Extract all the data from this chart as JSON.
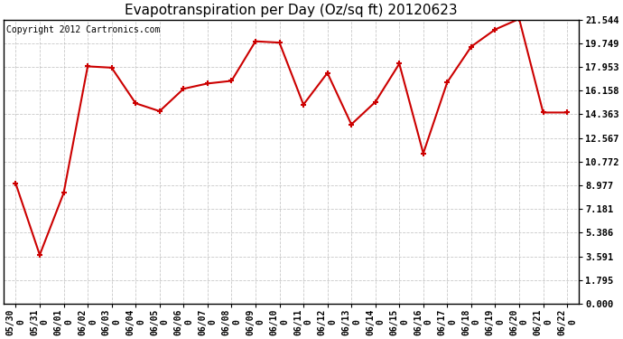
{
  "title": "Evapotranspiration per Day (Oz/sq ft) 20120623",
  "copyright": "Copyright 2012 Cartronics.com",
  "dates": [
    "05/30",
    "05/31",
    "06/01",
    "06/02",
    "06/03",
    "06/04",
    "06/05",
    "06/06",
    "06/07",
    "06/08",
    "06/09",
    "06/10",
    "06/11",
    "06/12",
    "06/13",
    "06/14",
    "06/15",
    "06/16",
    "06/17",
    "06/18",
    "06/19",
    "06/20",
    "06/21",
    "06/22"
  ],
  "values": [
    9.1,
    3.7,
    8.4,
    18.0,
    17.9,
    15.2,
    14.6,
    16.3,
    16.7,
    16.9,
    19.9,
    19.8,
    15.1,
    17.5,
    13.6,
    15.3,
    18.2,
    11.4,
    16.8,
    19.5,
    20.8,
    21.6,
    14.5,
    14.5
  ],
  "line_color": "#cc0000",
  "marker_color": "#cc0000",
  "bg_color": "#ffffff",
  "grid_color": "#bbbbbb",
  "yticks": [
    0.0,
    1.795,
    3.591,
    5.386,
    7.181,
    8.977,
    10.772,
    12.567,
    14.363,
    16.158,
    17.953,
    19.749,
    21.544
  ],
  "ylim": [
    0.0,
    21.544
  ],
  "title_fontsize": 11,
  "copyright_fontsize": 7
}
